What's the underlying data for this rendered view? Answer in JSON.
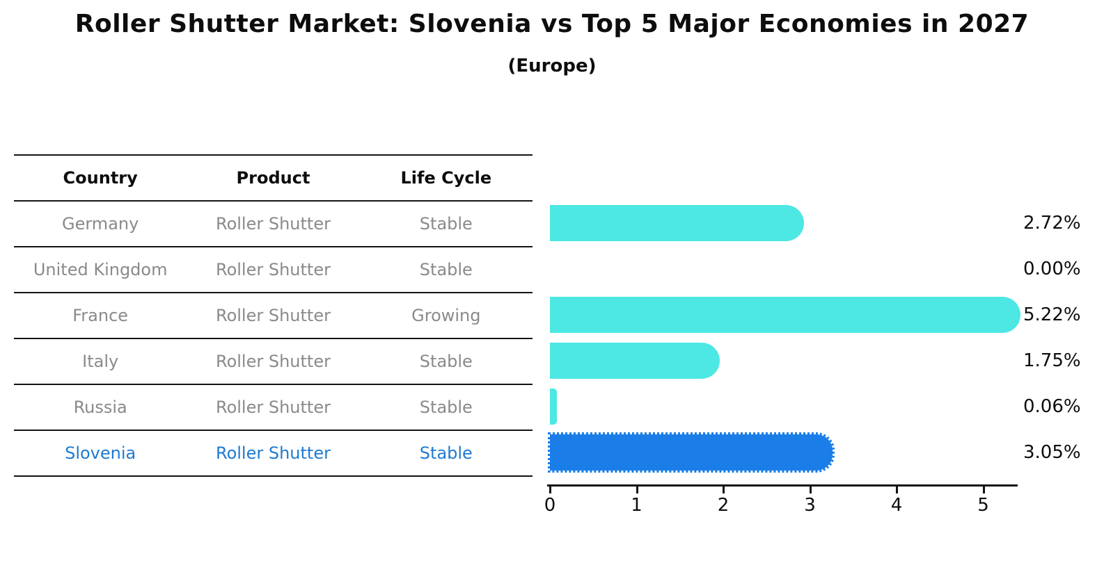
{
  "title": "Roller Shutter Market: Slovenia vs Top 5 Major Economies in 2027",
  "subtitle": "(Europe)",
  "table": {
    "headers": [
      "Country",
      "Product",
      "Life Cycle"
    ],
    "rows": [
      {
        "country": "Germany",
        "product": "Roller Shutter",
        "life_cycle": "Stable"
      },
      {
        "country": "United Kingdom",
        "product": "Roller Shutter",
        "life_cycle": "Stable"
      },
      {
        "country": "France",
        "product": "Roller Shutter",
        "life_cycle": "Growing"
      },
      {
        "country": "Italy",
        "product": "Roller Shutter",
        "life_cycle": "Stable"
      },
      {
        "country": "Russia",
        "product": "Roller Shutter",
        "life_cycle": "Stable"
      },
      {
        "country": "Slovenia",
        "product": "Roller Shutter",
        "life_cycle": "Stable"
      }
    ]
  },
  "chart_data": {
    "type": "bar",
    "orientation": "horizontal",
    "title": "Roller Shutter Market: Slovenia vs Top 5 Major Economies in 2027",
    "subtitle": "(Europe)",
    "categories": [
      "Germany",
      "United Kingdom",
      "France",
      "Italy",
      "Russia",
      "Slovenia"
    ],
    "values": [
      2.72,
      0.0,
      5.22,
      1.75,
      0.06,
      3.05
    ],
    "labels": [
      "2.72%",
      "0.00%",
      "5.22%",
      "1.75%",
      "0.06%",
      "3.05%"
    ],
    "highlight_index": 5,
    "xlim": [
      0,
      5.4
    ],
    "x_ticks": [
      0,
      1,
      2,
      3,
      4,
      5
    ],
    "x_tick_labels": [
      "0",
      "1",
      "2",
      "3",
      "4",
      "5"
    ],
    "grid": false,
    "legend": false
  },
  "colors": {
    "bar": "#4de7e4",
    "highlight_bar": "#1b7ee8",
    "highlight_text": "#1f7ad1",
    "text": "#0d0d0d",
    "muted_text": "#8a8a8a"
  }
}
